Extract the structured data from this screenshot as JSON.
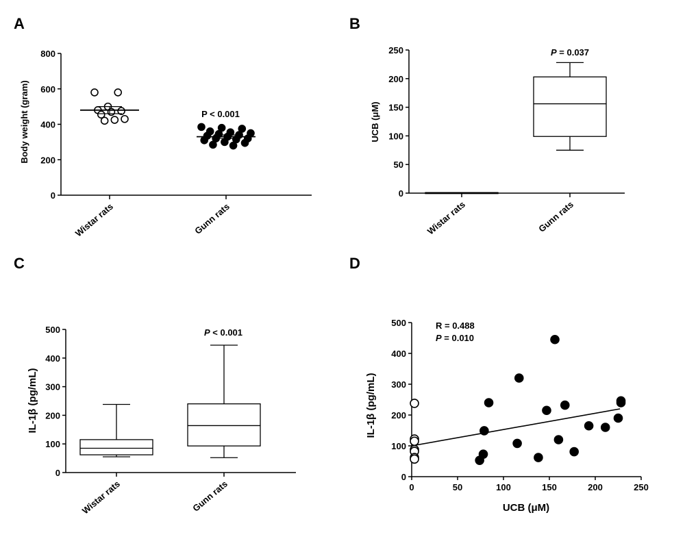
{
  "panels": {
    "A": {
      "label": "A"
    },
    "B": {
      "label": "B"
    },
    "C": {
      "label": "C"
    },
    "D": {
      "label": "D"
    }
  },
  "chart_data": [
    {
      "panel": "A",
      "type": "scatter",
      "ylabel": "Body weight (gram)",
      "xlabel": "",
      "ylim": [
        0,
        800
      ],
      "yticks": [
        0,
        200,
        400,
        600,
        800
      ],
      "categories": [
        "Wistar rats",
        "Gunn rats"
      ],
      "annotation": "P < 0.001",
      "series": [
        {
          "category": "Wistar rats",
          "marker": "open",
          "values": [
            580,
            580,
            500,
            480,
            475,
            470,
            455,
            430,
            425,
            420
          ],
          "mean": 480,
          "sem_low": 460,
          "sem_high": 500
        },
        {
          "category": "Gunn rats",
          "marker": "filled",
          "values": [
            385,
            380,
            375,
            360,
            355,
            350,
            345,
            340,
            335,
            330,
            320,
            320,
            315,
            310,
            300,
            295,
            285,
            280
          ],
          "mean": 330,
          "sem_low": 320,
          "sem_high": 340
        }
      ]
    },
    {
      "panel": "B",
      "type": "box",
      "ylabel": "UCB (μM)",
      "xlabel": "",
      "ylim": [
        0,
        250
      ],
      "yticks": [
        0,
        50,
        100,
        150,
        200,
        250
      ],
      "categories": [
        "Wistar rats",
        "Gunn rats"
      ],
      "annotation_italic": "P",
      "annotation_rest": " = 0.037",
      "boxes": [
        {
          "category": "Wistar rats",
          "min": 0,
          "q1": 0,
          "median": 0.5,
          "q3": 1,
          "max": 1
        },
        {
          "category": "Gunn rats",
          "min": 75,
          "q1": 99,
          "median": 156,
          "q3": 203,
          "max": 228
        }
      ]
    },
    {
      "panel": "C",
      "type": "box",
      "ylabel": "IL-1β (pg/mL)",
      "xlabel": "",
      "ylim": [
        0,
        500
      ],
      "yticks": [
        0,
        100,
        200,
        300,
        400,
        500
      ],
      "categories": [
        "Wistar rats",
        "Gunn rats"
      ],
      "annotation_italic": "P",
      "annotation_rest": " < 0.001",
      "boxes": [
        {
          "category": "Wistar rats",
          "min": 55,
          "q1": 62,
          "median": 85,
          "q3": 115,
          "max": 238
        },
        {
          "category": "Gunn rats",
          "min": 52,
          "q1": 93,
          "median": 164,
          "q3": 240,
          "max": 445
        }
      ]
    },
    {
      "panel": "D",
      "type": "scatter",
      "xlabel": "UCB (μM)",
      "ylabel": "IL-1β (pg/mL)",
      "xlim": [
        0,
        250
      ],
      "ylim": [
        0,
        500
      ],
      "xticks": [
        0,
        50,
        100,
        150,
        200,
        250
      ],
      "yticks": [
        0,
        100,
        200,
        300,
        400,
        500
      ],
      "annotation_r": "R = 0.488",
      "annotation_p_italic": "P",
      "annotation_p_rest": " = 0.010",
      "regression": {
        "x": [
          0,
          227
        ],
        "y": [
          100,
          220
        ]
      },
      "series": [
        {
          "marker": "open",
          "points": [
            [
              3,
              238
            ],
            [
              3,
              122
            ],
            [
              3,
              115
            ],
            [
              3,
              88
            ],
            [
              3,
              82
            ],
            [
              3,
              62
            ],
            [
              3,
              57
            ]
          ]
        },
        {
          "marker": "filled",
          "points": [
            [
              74,
              53
            ],
            [
              78,
              73
            ],
            [
              79,
              149
            ],
            [
              84,
              240
            ],
            [
              115,
              108
            ],
            [
              117,
              320
            ],
            [
              138,
              62
            ],
            [
              147,
              215
            ],
            [
              156,
              445
            ],
            [
              160,
              120
            ],
            [
              167,
              232
            ],
            [
              177,
              81
            ],
            [
              193,
              165
            ],
            [
              211,
              160
            ],
            [
              225,
              190
            ],
            [
              228,
              240
            ],
            [
              228,
              246
            ]
          ]
        }
      ]
    }
  ]
}
